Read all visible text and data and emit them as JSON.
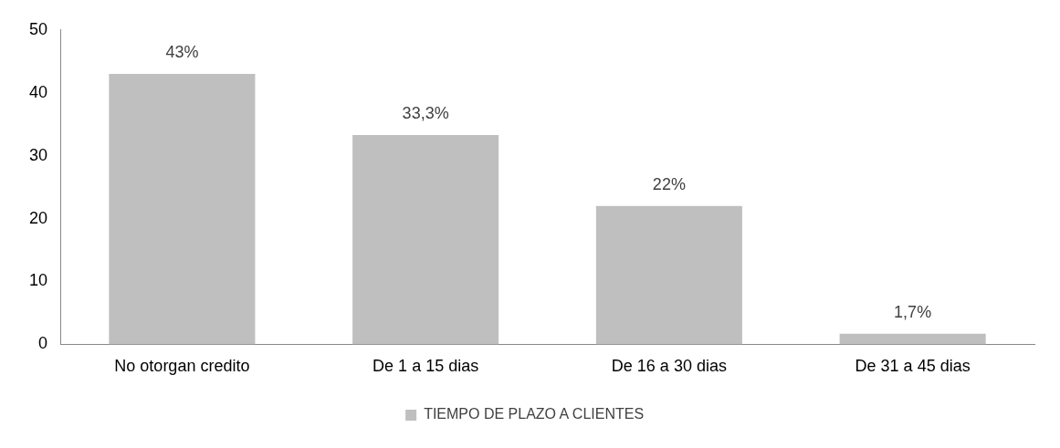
{
  "chart_data": {
    "type": "bar",
    "categories": [
      "No otorgan credito",
      "De 1 a 15 dias",
      "De 16 a 30 dias",
      "De 31 a 45 dias"
    ],
    "series": [
      {
        "name": "TIEMPO DE PLAZO A CLIENTES",
        "color": "#bfbfbf",
        "values": [
          43,
          33.3,
          22,
          1.7
        ],
        "value_labels": [
          "43%",
          "33,3%",
          "22%",
          "1,7%"
        ]
      }
    ],
    "ylim": [
      0,
      50
    ],
    "yticks": [
      0,
      10,
      20,
      30,
      40,
      50
    ],
    "grid": false,
    "legend": "bottom"
  }
}
